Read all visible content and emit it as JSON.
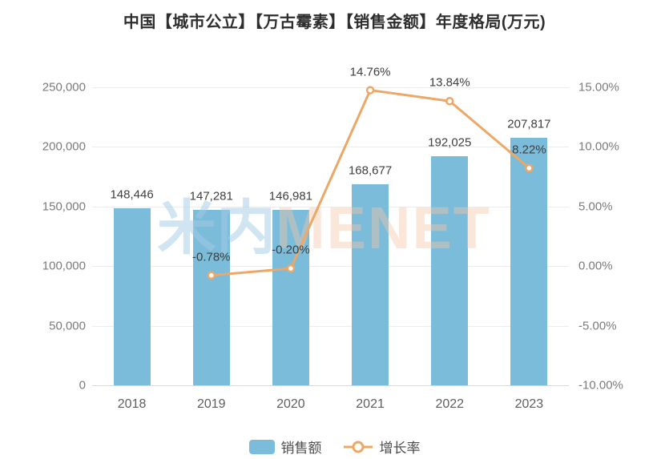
{
  "chart": {
    "title": "中国【城市公立】【万古霉素】【销售金额】年度格局(万元)",
    "watermark": {
      "part1": "米内",
      "part2": "MENET"
    }
  },
  "chart_data": {
    "type": "bar+line",
    "title": "中国【城市公立】【万古霉素】【销售金额】年度格局(万元)",
    "categories": [
      "2018",
      "2019",
      "2020",
      "2021",
      "2022",
      "2023"
    ],
    "series": [
      {
        "name": "销售额",
        "type": "bar",
        "axis": "left",
        "color": "#7ABCD9",
        "values": [
          148446,
          147281,
          146981,
          168677,
          192025,
          207817
        ],
        "labels": [
          "148,446",
          "147,281",
          "146,981",
          "168,677",
          "192,025",
          "207,817"
        ]
      },
      {
        "name": "增长率",
        "type": "line",
        "axis": "right",
        "color": "#EDA766",
        "values": [
          null,
          -0.78,
          -0.2,
          14.76,
          13.84,
          8.22
        ],
        "labels": [
          "",
          "-0.78%",
          "-0.20%",
          "14.76%",
          "13.84%",
          "8.22%"
        ]
      }
    ],
    "left_axis": {
      "min": 0,
      "max": 250000,
      "ticks": [
        "0",
        "50,000",
        "100,000",
        "150,000",
        "200,000",
        "250,000"
      ]
    },
    "right_axis": {
      "min": -10,
      "max": 15,
      "ticks": [
        "-10.00%",
        "-5.00%",
        "0.00%",
        "5.00%",
        "10.00%",
        "15.00%"
      ]
    },
    "grid": true,
    "legend_position": "bottom",
    "legend": [
      {
        "label": "销售额",
        "marker": "bar-swatch"
      },
      {
        "label": "增长率",
        "marker": "line-circle"
      }
    ]
  }
}
